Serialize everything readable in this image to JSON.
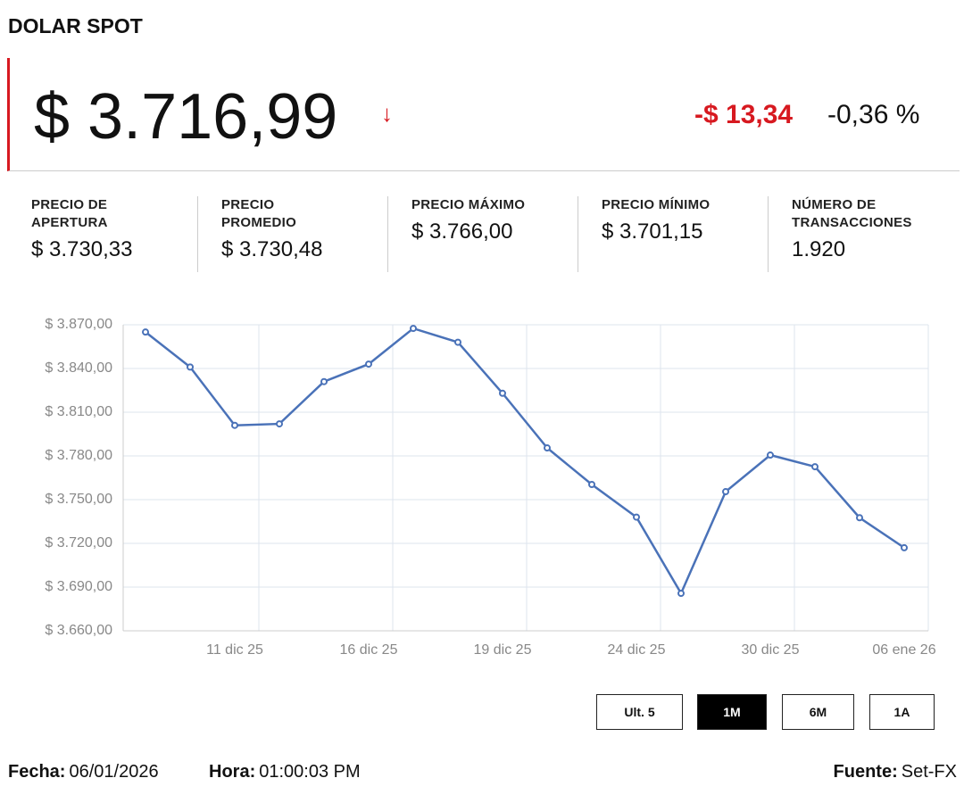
{
  "header": {
    "title": "DOLAR SPOT"
  },
  "quote": {
    "price": "$ 3.716,99",
    "change": "-$ 13,34",
    "change_percent": "-0,36 %"
  },
  "stats": [
    {
      "label": "PRECIO DE\nAPERTURA",
      "value": "$ 3.730,33"
    },
    {
      "label": "PRECIO\nPROMEDIO",
      "value": "$ 3.730,48"
    },
    {
      "label": "PRECIO MÁXIMO",
      "value": "$ 3.766,00"
    },
    {
      "label": "PRECIO MÍNIMO",
      "value": "$ 3.701,15"
    },
    {
      "label": "NÚMERO DE\nTRANSACCIONES",
      "value": "1.920"
    }
  ],
  "chart_data": {
    "type": "line",
    "categories": [
      null,
      null,
      "11 dic 25",
      null,
      null,
      "16 dic 25",
      null,
      null,
      "19 dic 25",
      null,
      null,
      "24 dic 25",
      null,
      null,
      "30 dic 25",
      null,
      null,
      "06 ene 26"
    ],
    "series": [
      {
        "color": "#4a72b8",
        "values": [
          3865,
          3841,
          3801,
          3802,
          3831,
          3843,
          3867.5,
          3858,
          3823,
          3785.5,
          3760.4,
          3738,
          3685.7,
          3755.5,
          3780.6,
          3772.6,
          3737.6,
          3717
        ]
      }
    ],
    "ylim": [
      3660,
      3870
    ],
    "yticks": [
      {
        "value": 3660,
        "label": "$ 3.660,00"
      },
      {
        "value": 3690,
        "label": "$ 3.690,00"
      },
      {
        "value": 3720,
        "label": "$ 3.720,00"
      },
      {
        "value": 3750,
        "label": "$ 3.750,00"
      },
      {
        "value": 3780,
        "label": "$ 3.780,00"
      },
      {
        "value": 3810,
        "label": "$ 3.810,00"
      },
      {
        "value": 3840,
        "label": "$ 3.840,00"
      },
      {
        "value": 3870,
        "label": "$ 3.870,00"
      }
    ],
    "grid": true
  },
  "range_buttons": [
    "Ult. 5",
    "1M",
    "6M",
    "1A"
  ],
  "active_range": "1M",
  "footer": {
    "date_label": "Fecha:",
    "date": "06/01/2026",
    "time_label": "Hora:",
    "time": "01:00:03 PM",
    "source_label": "Fuente:",
    "source": "Set-FX"
  }
}
